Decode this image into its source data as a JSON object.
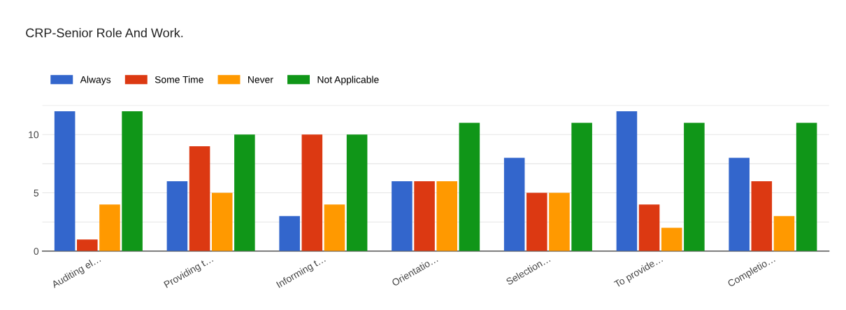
{
  "chart_data": {
    "type": "bar",
    "title": "CRP-Senior Role And Work.",
    "categories": [
      "Auditing el…",
      "Providing t…",
      "Informing t…",
      "Orientatio…",
      "Selection…",
      "To provide…",
      "Completio…"
    ],
    "series": [
      {
        "name": "Always",
        "color": "#3366cc",
        "values": [
          12,
          6,
          3,
          6,
          8,
          12,
          8
        ]
      },
      {
        "name": "Some Time",
        "color": "#dc3912",
        "values": [
          1,
          9,
          10,
          6,
          5,
          4,
          6
        ]
      },
      {
        "name": "Never",
        "color": "#ff9900",
        "values": [
          4,
          5,
          4,
          6,
          5,
          2,
          3
        ]
      },
      {
        "name": "Not Applicable",
        "color": "#109618",
        "values": [
          12,
          10,
          10,
          11,
          11,
          11,
          11
        ]
      }
    ],
    "ylim": [
      0,
      12.5
    ],
    "yticks": [
      0,
      {
        "value": 2.5,
        "label": null
      },
      5,
      {
        "value": 7.5,
        "label": null
      },
      10,
      {
        "value": 12.5,
        "label": null
      }
    ],
    "grid": "y",
    "legend": "top left"
  }
}
